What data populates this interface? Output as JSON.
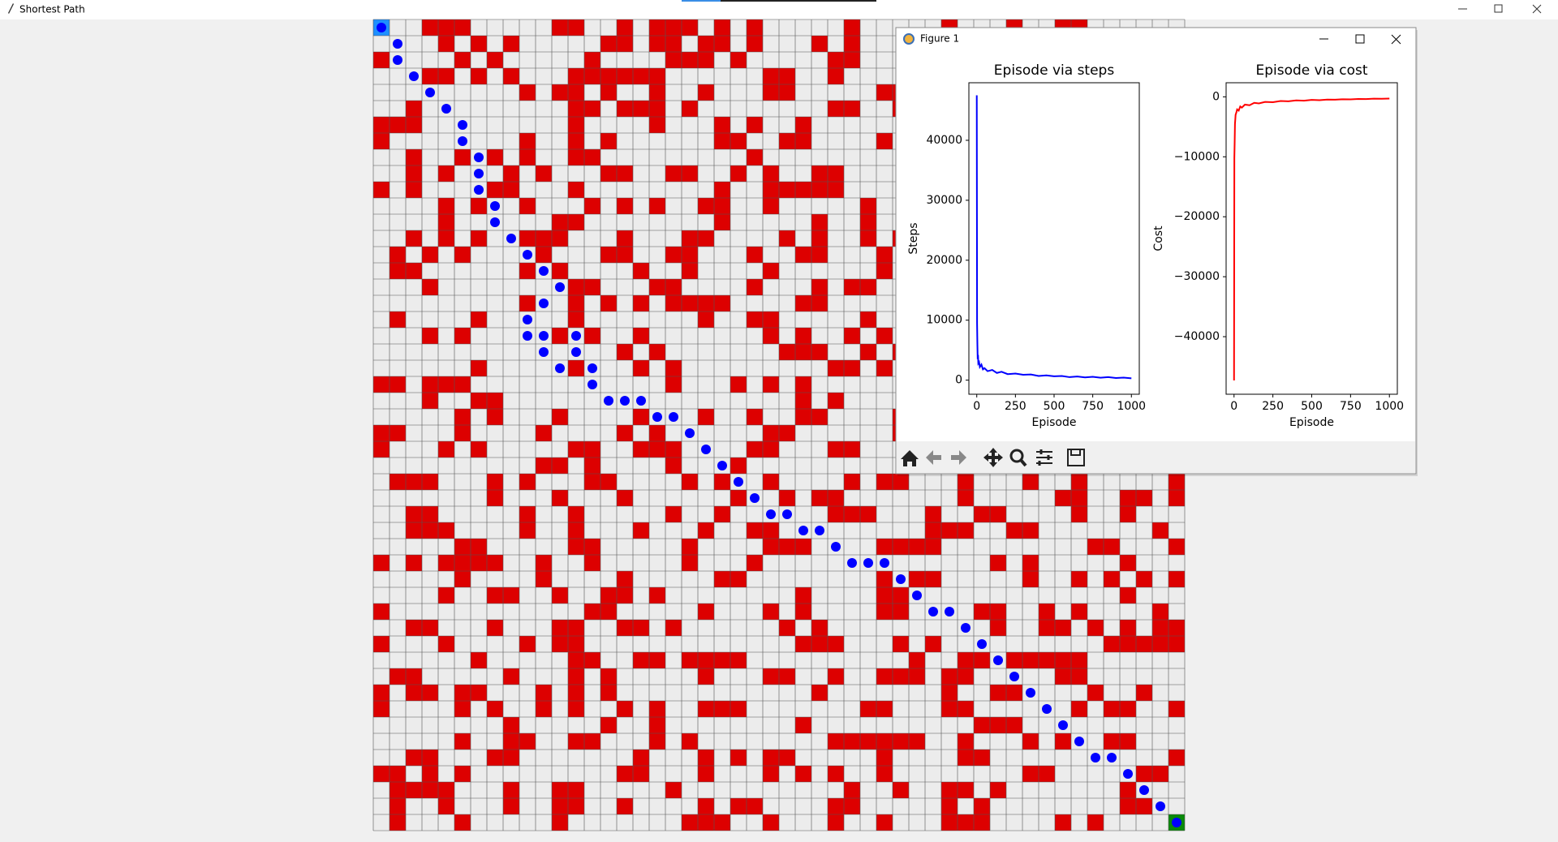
{
  "window": {
    "title": "Shortest Path"
  },
  "figure": {
    "title": "Figure 1"
  },
  "chart_data": [
    {
      "type": "line",
      "title": "Episode via steps",
      "x_label": "Episode",
      "y_label": "Steps",
      "x": [
        0,
        2,
        4,
        6,
        8,
        10,
        15,
        20,
        30,
        40,
        50,
        70,
        100,
        130,
        160,
        200,
        250,
        300,
        350,
        400,
        450,
        500,
        550,
        600,
        650,
        700,
        750,
        800,
        850,
        900,
        950,
        1000
      ],
      "series": [
        {
          "color": "#0000ff",
          "values": [
            47500,
            9500,
            6000,
            3500,
            4200,
            2800,
            3000,
            2200,
            2600,
            1800,
            2000,
            1500,
            1700,
            1200,
            1400,
            1000,
            1100,
            900,
            950,
            700,
            800,
            650,
            700,
            500,
            600,
            450,
            550,
            400,
            500,
            350,
            420,
            300
          ]
        }
      ],
      "xlim": [
        -51,
        1051
      ],
      "xticks": [
        0,
        250,
        500,
        750,
        1000
      ],
      "ylim": [
        -2350,
        49600
      ],
      "yticks": [
        0,
        10000,
        20000,
        30000,
        40000
      ]
    },
    {
      "type": "line",
      "title": "Episode via cost",
      "x_label": "Episode",
      "y_label": "Cost",
      "x": [
        0,
        2,
        4,
        6,
        8,
        10,
        15,
        20,
        30,
        40,
        50,
        70,
        100,
        130,
        160,
        200,
        250,
        300,
        350,
        400,
        450,
        500,
        550,
        600,
        650,
        700,
        750,
        800,
        850,
        900,
        950,
        1000
      ],
      "series": [
        {
          "color": "#ff0000",
          "values": [
            -47300,
            -10200,
            -7600,
            -4500,
            -3800,
            -3000,
            -2600,
            -2100,
            -2300,
            -1600,
            -1800,
            -1300,
            -1400,
            -1000,
            -1100,
            -850,
            -900,
            -700,
            -750,
            -600,
            -650,
            -500,
            -550,
            -450,
            -480,
            -400,
            -420,
            -350,
            -380,
            -300,
            -330,
            -280
          ]
        }
      ],
      "xlim": [
        -51,
        1051
      ],
      "xticks": [
        0,
        250,
        500,
        750,
        1000
      ],
      "ylim": [
        -49600,
        2350
      ],
      "yticks": [
        {
          "value": -40000,
          "label": "−40000"
        },
        {
          "value": -30000,
          "label": "−30000"
        },
        {
          "value": -20000,
          "label": "−20000"
        },
        {
          "value": -10000,
          "label": "−10000"
        },
        0
      ]
    }
  ]
}
